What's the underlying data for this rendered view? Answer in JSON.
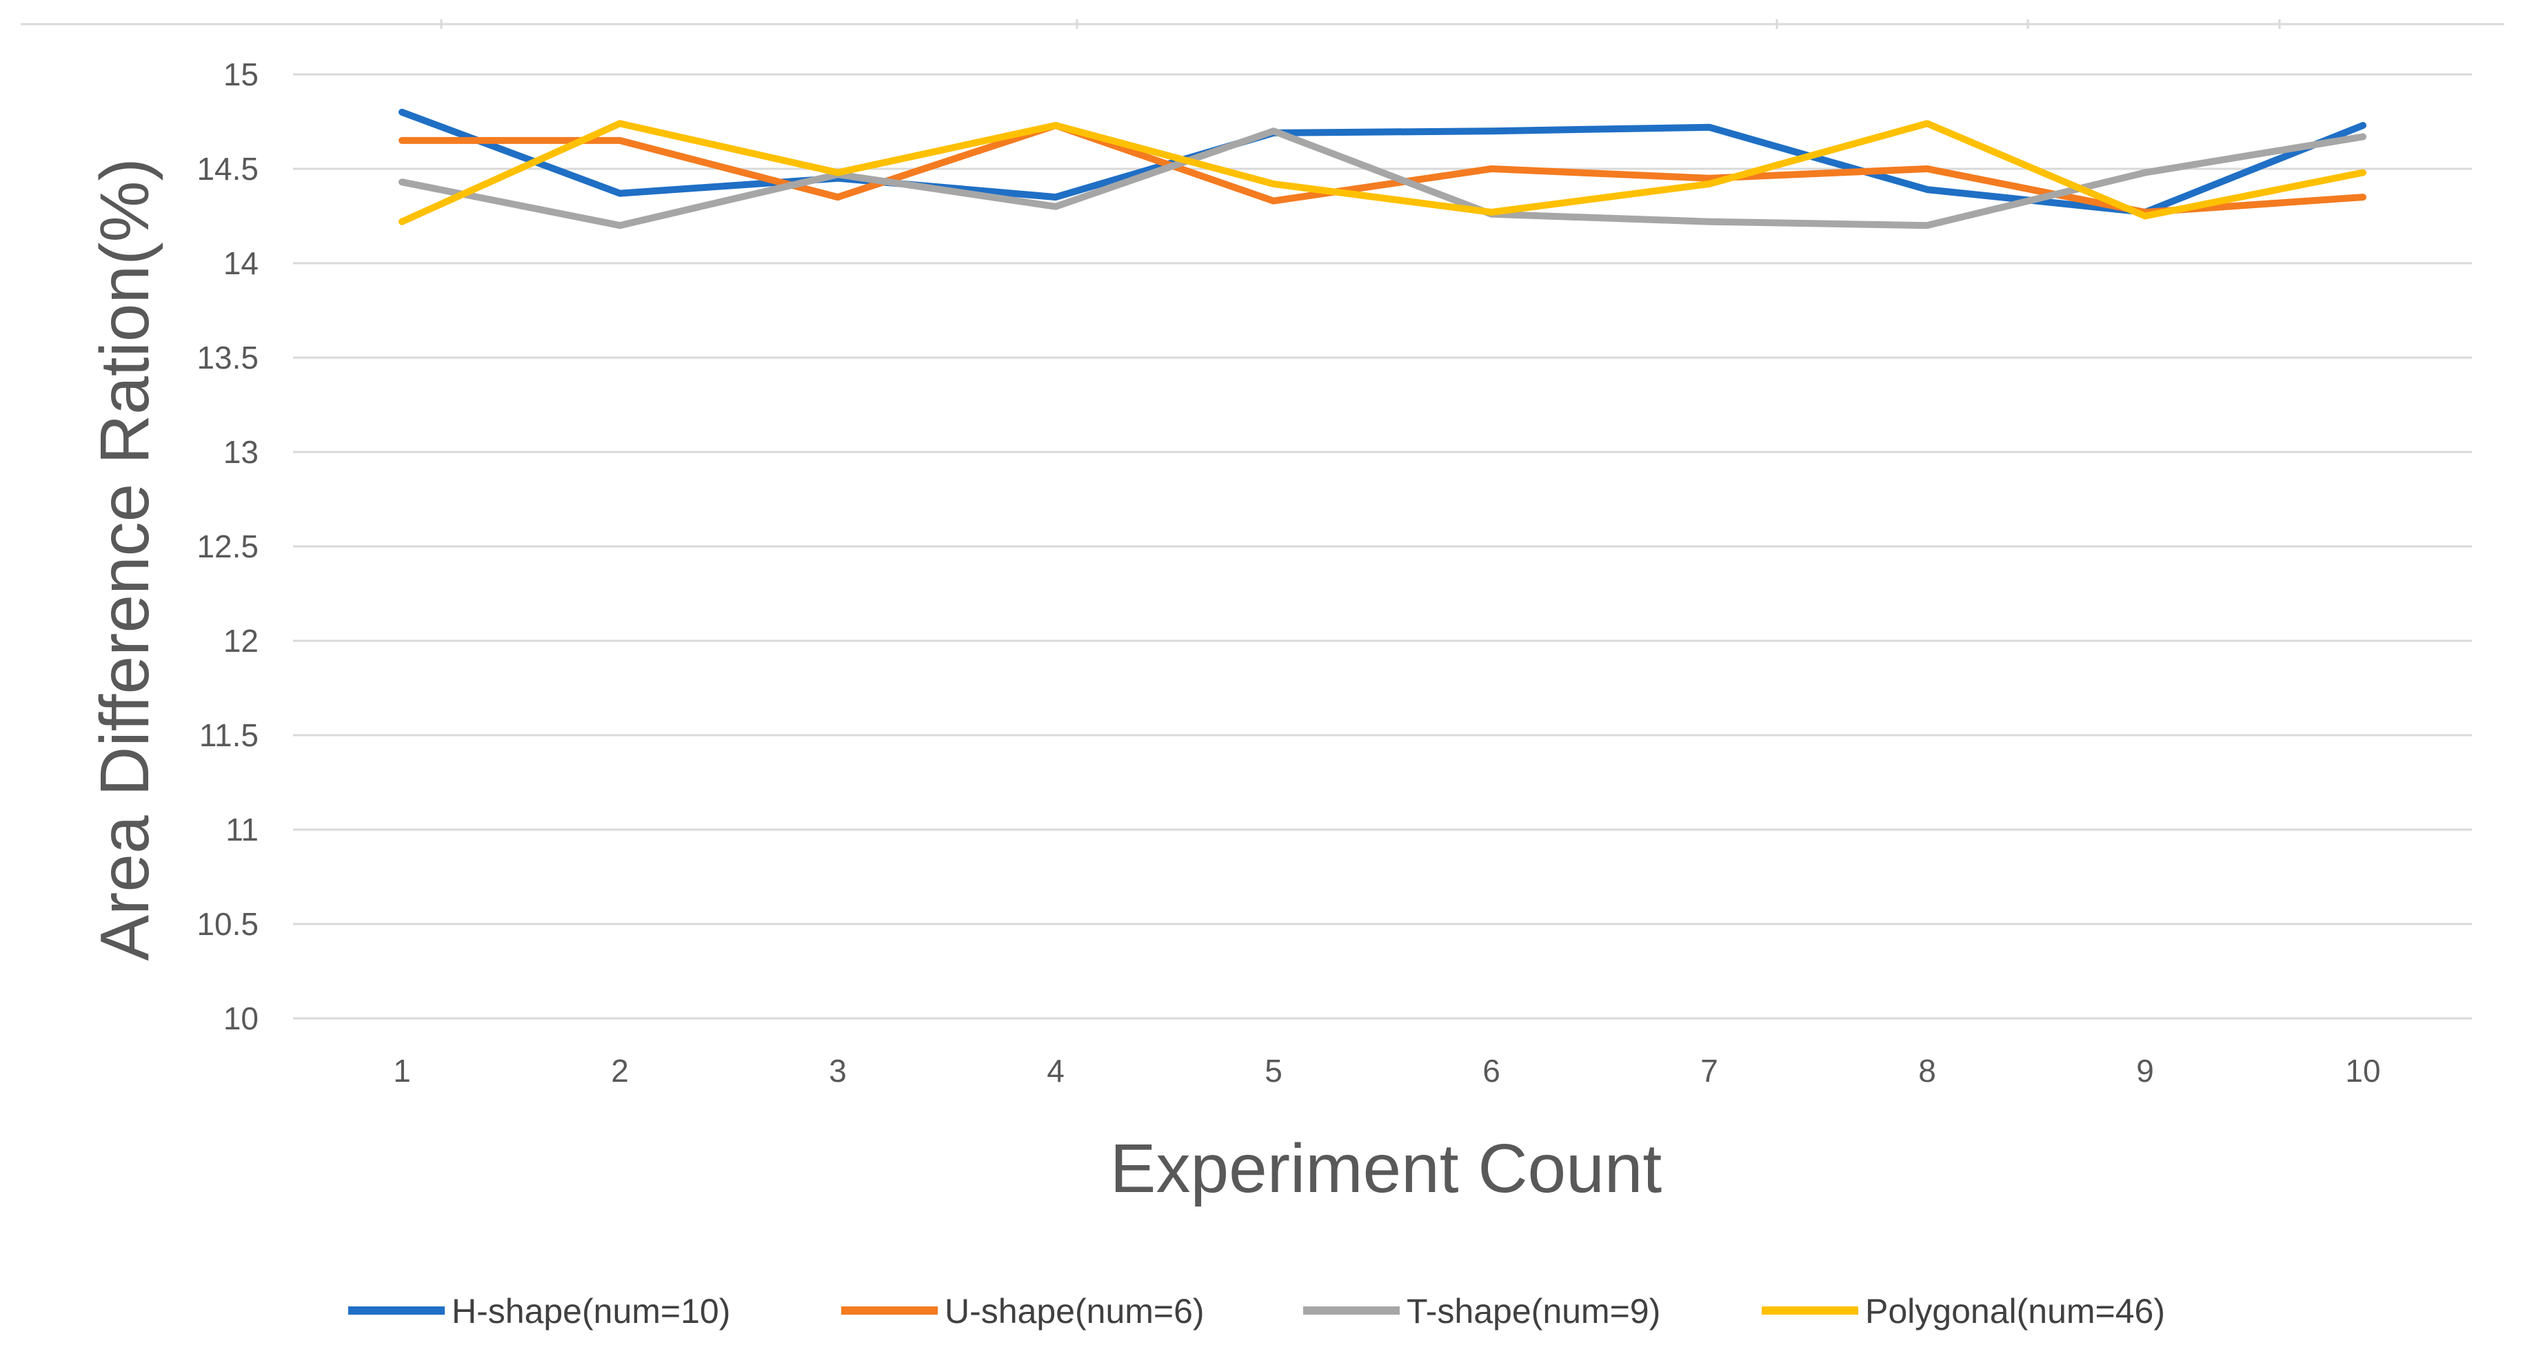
{
  "chart_data": {
    "type": "line",
    "title": "",
    "xlabel": "Experiment Count",
    "ylabel": "Area Difference Ration(%)",
    "categories": [
      "1",
      "2",
      "3",
      "4",
      "5",
      "6",
      "7",
      "8",
      "9",
      "10"
    ],
    "ylim": [
      10,
      15
    ],
    "yticks": [
      "10",
      "10.5",
      "11",
      "11.5",
      "12",
      "12.5",
      "13",
      "13.5",
      "14",
      "14.5",
      "15"
    ],
    "grid": true,
    "legend_position": "bottom",
    "series": [
      {
        "name": "H-shape(num=10)",
        "color": "#1f6fc5",
        "values": [
          14.8,
          14.37,
          14.45,
          14.35,
          14.69,
          14.7,
          14.72,
          14.39,
          14.27,
          14.73
        ]
      },
      {
        "name": "U-shape(num=6)",
        "color": "#f47b20",
        "values": [
          14.65,
          14.65,
          14.35,
          14.73,
          14.33,
          14.5,
          14.45,
          14.5,
          14.27,
          14.35
        ]
      },
      {
        "name": "T-shape(num=9)",
        "color": "#a6a6a6",
        "values": [
          14.43,
          14.2,
          14.47,
          14.3,
          14.7,
          14.26,
          14.22,
          14.2,
          14.48,
          14.67
        ]
      },
      {
        "name": "Polygonal(num=46)",
        "color": "#ffc000",
        "values": [
          14.22,
          14.74,
          14.48,
          14.73,
          14.42,
          14.27,
          14.42,
          14.74,
          14.25,
          14.48
        ]
      }
    ]
  }
}
